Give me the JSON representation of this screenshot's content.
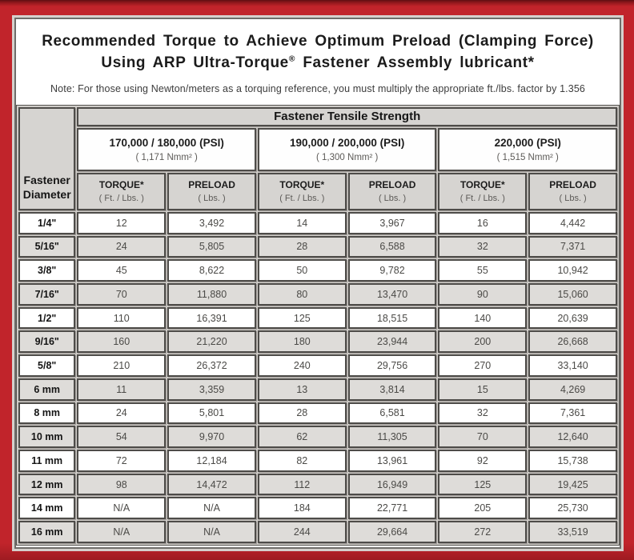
{
  "title": {
    "line1": "Recommended Torque to Achieve Optimum Preload (Clamping Force)",
    "line2_pre": "Using ARP Ultra-Torque",
    "line2_mark": "®",
    "line2_post": " Fastener Assembly lubricant*"
  },
  "note": "Note: For those using Newton/meters as a torquing reference, you must multiply the appropriate ft./lbs. factor by 1.356",
  "table": {
    "corner_line1": "Fastener",
    "corner_line2": "Diameter",
    "tensile_header": "Fastener Tensile Strength",
    "strength_groups": [
      {
        "psi": "170,000 / 180,000 (PSI)",
        "nmm": "( 1,171 Nmm² )"
      },
      {
        "psi": "190,000 / 200,000 (PSI)",
        "nmm": "( 1,300 Nmm² )"
      },
      {
        "psi": "220,000 (PSI)",
        "nmm": "( 1,515 Nmm² )"
      }
    ],
    "sub_headers": {
      "torque_label": "TORQUE*",
      "torque_unit": "( Ft. / Lbs. )",
      "preload_label": "PRELOAD",
      "preload_unit": "( Lbs. )"
    },
    "rows": [
      {
        "diameter": "1/4\"",
        "values": [
          "12",
          "3,492",
          "14",
          "3,967",
          "16",
          "4,442"
        ]
      },
      {
        "diameter": "5/16\"",
        "values": [
          "24",
          "5,805",
          "28",
          "6,588",
          "32",
          "7,371"
        ]
      },
      {
        "diameter": "3/8\"",
        "values": [
          "45",
          "8,622",
          "50",
          "9,782",
          "55",
          "10,942"
        ]
      },
      {
        "diameter": "7/16\"",
        "values": [
          "70",
          "11,880",
          "80",
          "13,470",
          "90",
          "15,060"
        ]
      },
      {
        "diameter": "1/2\"",
        "values": [
          "110",
          "16,391",
          "125",
          "18,515",
          "140",
          "20,639"
        ]
      },
      {
        "diameter": "9/16\"",
        "values": [
          "160",
          "21,220",
          "180",
          "23,944",
          "200",
          "26,668"
        ]
      },
      {
        "diameter": "5/8\"",
        "values": [
          "210",
          "26,372",
          "240",
          "29,756",
          "270",
          "33,140"
        ]
      },
      {
        "diameter": "6 mm",
        "values": [
          "11",
          "3,359",
          "13",
          "3,814",
          "15",
          "4,269"
        ]
      },
      {
        "diameter": "8 mm",
        "values": [
          "24",
          "5,801",
          "28",
          "6,581",
          "32",
          "7,361"
        ]
      },
      {
        "diameter": "10 mm",
        "values": [
          "54",
          "9,970",
          "62",
          "11,305",
          "70",
          "12,640"
        ]
      },
      {
        "diameter": "11 mm",
        "values": [
          "72",
          "12,184",
          "82",
          "13,961",
          "92",
          "15,738"
        ]
      },
      {
        "diameter": "12 mm",
        "values": [
          "98",
          "14,472",
          "112",
          "16,949",
          "125",
          "19,425"
        ]
      },
      {
        "diameter": "14 mm",
        "values": [
          "N/A",
          "N/A",
          "184",
          "22,771",
          "205",
          "25,730"
        ]
      },
      {
        "diameter": "16 mm",
        "values": [
          "N/A",
          "N/A",
          "244",
          "29,664",
          "272",
          "33,519"
        ]
      }
    ]
  },
  "colors": {
    "frame_red": "#c1242b",
    "frame_top_dark": "#5e0f13",
    "header_gray": "#d6d4d1",
    "row_shaded_gray": "#dedcd9",
    "cell_border": "#4e4c49"
  }
}
